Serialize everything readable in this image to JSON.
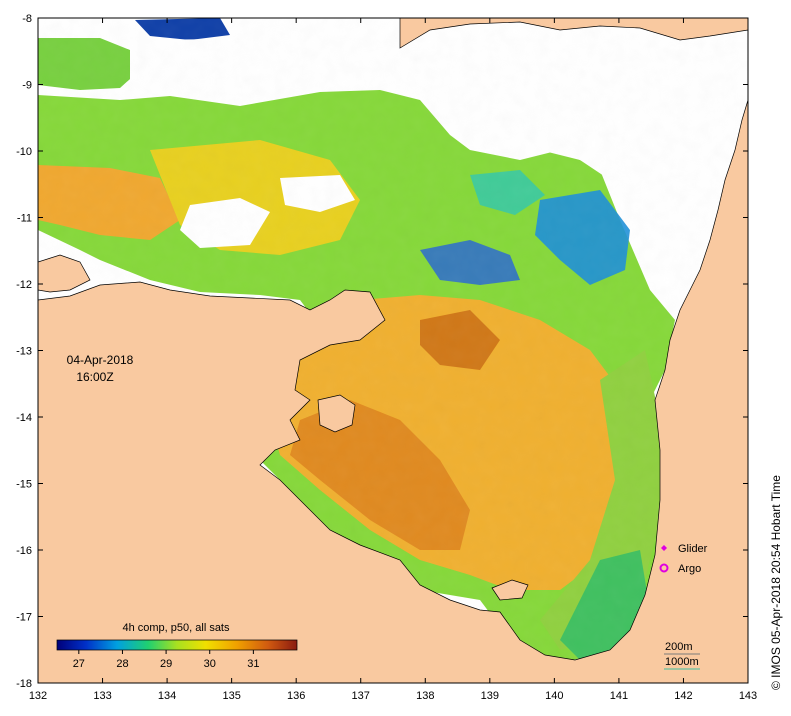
{
  "map": {
    "date_line": "04-Apr-2018",
    "time_line": "16:00Z",
    "side_credit": "© IMOS 05-Apr-2018 20:54 Hobart Time",
    "colorbar_title": "4h comp, p50, all sats",
    "colorbar_ticks": [
      "27",
      "28",
      "29",
      "30",
      "31"
    ],
    "colorbar_range": [
      26.5,
      32.0
    ],
    "legend": [
      {
        "label": "Glider",
        "color": "#e000e0",
        "symbol": "diamond"
      },
      {
        "label": "Argo",
        "color": "#e000e0",
        "symbol": "circle"
      }
    ],
    "contours": [
      {
        "label": "200m",
        "color": "#7a7a7a"
      },
      {
        "label": "1000m",
        "color": "#40c0a0"
      }
    ],
    "x_ticks": [
      "132",
      "133",
      "134",
      "135",
      "136",
      "137",
      "138",
      "139",
      "140",
      "141",
      "142",
      "143"
    ],
    "y_ticks": [
      "-8",
      "-9",
      "-10",
      "-11",
      "-12",
      "-13",
      "-14",
      "-15",
      "-16",
      "-17",
      "-18"
    ],
    "colors": {
      "land": "#f9c9a0",
      "no_data": "#ffffff",
      "sst_warm": "#e8a020",
      "sst_mid": "#9ad41e",
      "sst_cool": "#1f5fd0"
    }
  }
}
